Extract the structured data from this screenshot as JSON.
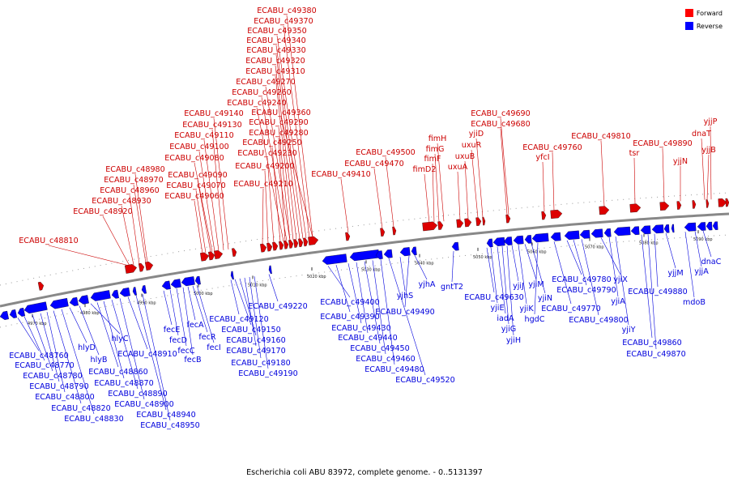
{
  "caption": "Escherichia coli ABU 83972, complete genome. - 0..5131397",
  "legend": [
    {
      "label": "Forward",
      "color": "#ff0000"
    },
    {
      "label": "Reverse",
      "color": "#0000ff"
    }
  ],
  "colors": {
    "forward": "#dd0000",
    "reverse": "#0000ff",
    "axis": "#888888"
  },
  "ticks": [
    {
      "label": "4970 kbp"
    },
    {
      "label": "4980 kbp"
    },
    {
      "label": "4990 kbp"
    },
    {
      "label": "5000 kbp"
    },
    {
      "label": "5010 kbp"
    },
    {
      "label": "5020 kbp"
    },
    {
      "label": "5030 kbp"
    },
    {
      "label": "5040 kbp"
    },
    {
      "label": "5050 kbp"
    },
    {
      "label": "5060 kbp"
    },
    {
      "label": "5070 kbp"
    },
    {
      "label": "5080 kbp"
    },
    {
      "label": "5090 kbp"
    }
  ],
  "forward_genes": [
    "ECABU_c48810",
    "ECABU_c48920",
    "ECABU_c48930",
    "ECABU_c48960",
    "ECABU_c48970",
    "ECABU_c48980",
    "ECABU_c49060",
    "ECABU_c49070",
    "ECABU_c49090",
    "ECABU_c49080",
    "ECABU_c49100",
    "ECABU_c49110",
    "ECABU_c49130",
    "ECABU_c49140",
    "ECABU_c49210",
    "ECABU_c49200",
    "ECABU_c49230",
    "ECABU_c49250",
    "ECABU_c49280",
    "ECABU_c49290",
    "ECABU_c49360",
    "ECABU_c49240",
    "ECABU_c49260",
    "ECABU_c49270",
    "ECABU_c49310",
    "ECABU_c49320",
    "ECABU_c49330",
    "ECABU_c49340",
    "ECABU_c49350",
    "ECABU_c49370",
    "ECABU_c49380",
    "ECABU_c49410",
    "ECABU_c49470",
    "ECABU_c49500",
    "fimD2",
    "fimF",
    "fimG",
    "fimH",
    "uxuA",
    "uxuB",
    "uxuR",
    "yjiD",
    "ECABU_c49680",
    "ECABU_c49690",
    "yfcI",
    "ECABU_c49760",
    "ECABU_c49810",
    "tsr",
    "ECABU_c49890",
    "yjjN",
    "yjjB",
    "dnaT",
    "yjjP"
  ],
  "reverse_genes": [
    "ECABU_c48760",
    "ECABU_c48770",
    "ECABU_c48780",
    "ECABU_c48790",
    "ECABU_c48800",
    "ECABU_c48820",
    "ECABU_c48830",
    "hlyD",
    "hlyB",
    "hlyC",
    "ECABU_c48860",
    "ECABU_c48870",
    "ECABU_c48890",
    "ECABU_c48900",
    "ECABU_c48910",
    "ECABU_c48940",
    "ECABU_c48950",
    "fecE",
    "fecD",
    "fecC",
    "fecB",
    "fecA",
    "fecR",
    "fecI",
    "ECABU_c49120",
    "ECABU_c49150",
    "ECABU_c49160",
    "ECABU_c49170",
    "ECABU_c49180",
    "ECABU_c49190",
    "ECABU_c49220",
    "ECABU_c49400",
    "ECABU_c49390",
    "ECABU_c49430",
    "ECABU_c49440",
    "ECABU_c49450",
    "ECABU_c49460",
    "ECABU_c49480",
    "ECABU_c49520",
    "yjhS",
    "ECABU_c49490",
    "yjhA",
    "gntT2",
    "ECABU_c49630",
    "yjiE",
    "iadA",
    "yjiG",
    "yjiH",
    "yjiJ",
    "yjiK",
    "yjiM",
    "yjiN",
    "hgdC",
    "ECABU_c49770",
    "ECABU_c49780",
    "ECABU_c49790",
    "ECABU_c49800",
    "yjiX",
    "yjiA",
    "yjiY",
    "ECABU_c49860",
    "ECABU_c49870",
    "ECABU_c49880",
    "yjjM",
    "mdoB",
    "yjjA",
    "dnaC"
  ]
}
